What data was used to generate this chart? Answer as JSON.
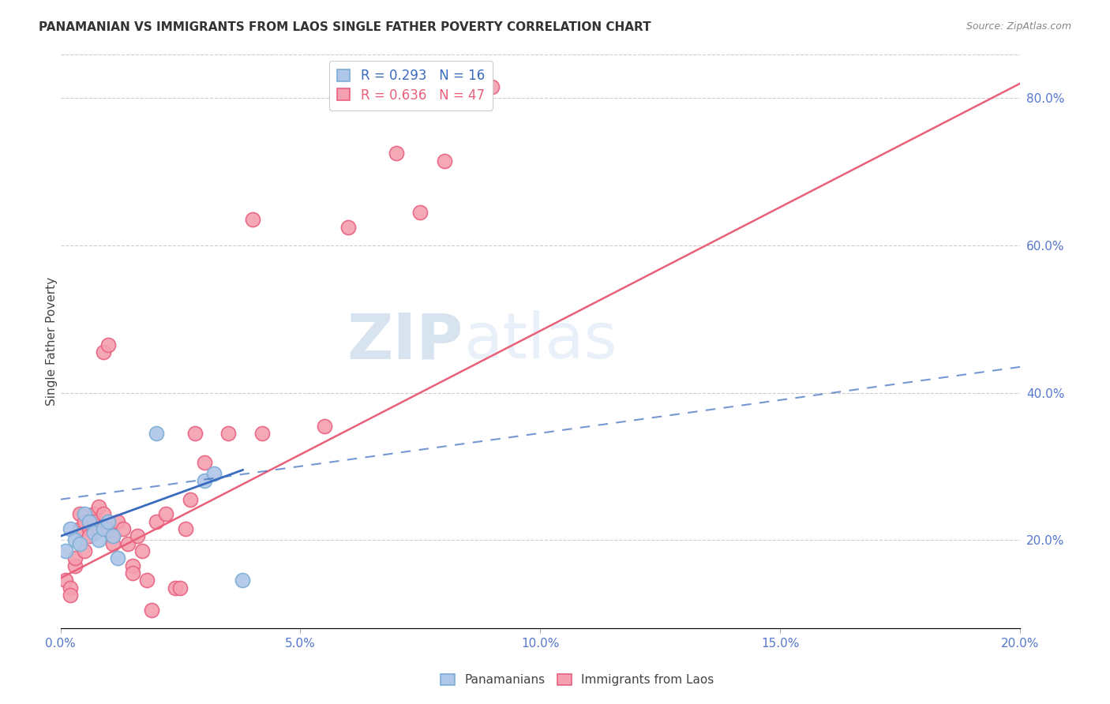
{
  "title": "PANAMANIAN VS IMMIGRANTS FROM LAOS SINGLE FATHER POVERTY CORRELATION CHART",
  "source": "Source: ZipAtlas.com",
  "ylabel": "Single Father Poverty",
  "xlim": [
    0.0,
    0.2
  ],
  "ylim": [
    0.08,
    0.86
  ],
  "xticks": [
    0.0,
    0.05,
    0.1,
    0.15,
    0.2
  ],
  "yticks": [
    0.2,
    0.4,
    0.6,
    0.8
  ],
  "ytick_labels": [
    "20.0%",
    "40.0%",
    "60.0%",
    "80.0%"
  ],
  "xtick_labels": [
    "0.0%",
    "5.0%",
    "10.0%",
    "15.0%",
    "20.0%"
  ],
  "legend1_label": "R = 0.293   N = 16",
  "legend2_label": "R = 0.636   N = 47",
  "panamanian_color": "#aec6e8",
  "laos_color": "#f4a0b0",
  "panamanian_edge": "#7bacd4",
  "laos_edge": "#e86080",
  "line_panama_color": "#3a6bbf",
  "line_laos_color": "#e8607a",
  "watermark_zip": "ZIP",
  "watermark_atlas": "atlas",
  "panamanian_x": [
    0.001,
    0.002,
    0.003,
    0.004,
    0.005,
    0.006,
    0.007,
    0.008,
    0.009,
    0.01,
    0.011,
    0.012,
    0.02,
    0.03,
    0.032,
    0.038
  ],
  "panamanian_y": [
    0.185,
    0.215,
    0.2,
    0.195,
    0.235,
    0.225,
    0.21,
    0.2,
    0.215,
    0.225,
    0.205,
    0.175,
    0.345,
    0.28,
    0.29,
    0.145
  ],
  "laos_x": [
    0.001,
    0.002,
    0.002,
    0.003,
    0.003,
    0.004,
    0.004,
    0.005,
    0.005,
    0.006,
    0.006,
    0.007,
    0.007,
    0.008,
    0.008,
    0.009,
    0.009,
    0.01,
    0.01,
    0.011,
    0.011,
    0.012,
    0.013,
    0.014,
    0.015,
    0.015,
    0.016,
    0.017,
    0.018,
    0.019,
    0.02,
    0.022,
    0.024,
    0.025,
    0.026,
    0.027,
    0.028,
    0.03,
    0.035,
    0.04,
    0.042,
    0.055,
    0.06,
    0.07,
    0.075,
    0.08,
    0.09
  ],
  "laos_y": [
    0.145,
    0.135,
    0.125,
    0.165,
    0.175,
    0.235,
    0.215,
    0.225,
    0.185,
    0.215,
    0.205,
    0.235,
    0.225,
    0.245,
    0.215,
    0.235,
    0.455,
    0.465,
    0.215,
    0.205,
    0.195,
    0.225,
    0.215,
    0.195,
    0.165,
    0.155,
    0.205,
    0.185,
    0.145,
    0.105,
    0.225,
    0.235,
    0.135,
    0.135,
    0.215,
    0.255,
    0.345,
    0.305,
    0.345,
    0.635,
    0.345,
    0.355,
    0.625,
    0.725,
    0.645,
    0.715,
    0.815
  ],
  "line_laos_x0": 0.0,
  "line_laos_y0": 0.148,
  "line_laos_x1": 0.2,
  "line_laos_y1": 0.82,
  "line_panama_x0": 0.0,
  "line_panama_y0": 0.205,
  "line_panama_x1": 0.038,
  "line_panama_y1": 0.295,
  "line_panama_dash_x0": 0.0,
  "line_panama_dash_y0": 0.255,
  "line_panama_dash_x1": 0.2,
  "line_panama_dash_y1": 0.435
}
